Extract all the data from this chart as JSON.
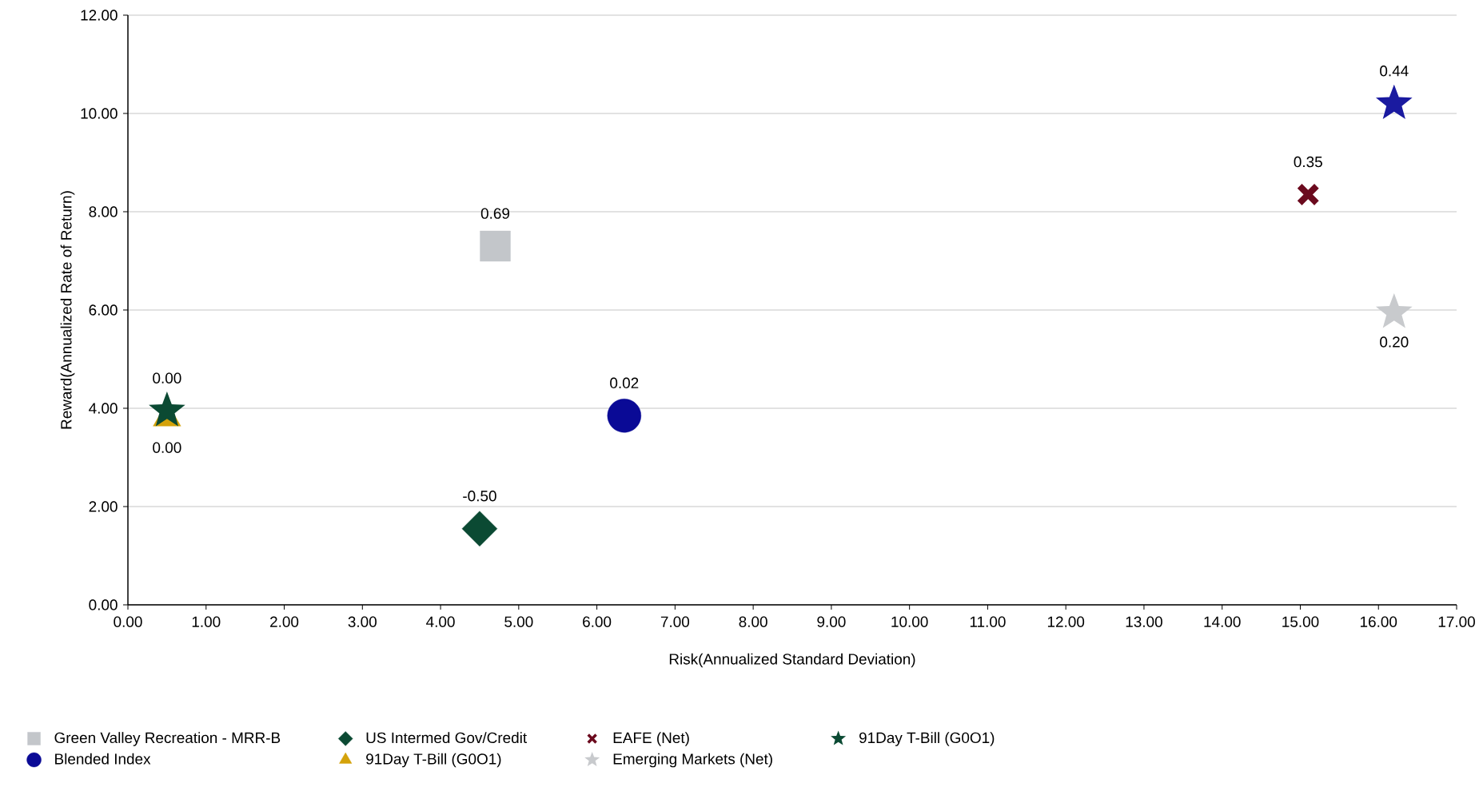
{
  "chart_data": {
    "type": "scatter",
    "xlabel": "Risk(Annualized Standard Deviation)",
    "ylabel": "Reward(Annualized Rate of Return)",
    "xlim": [
      0,
      17
    ],
    "ylim": [
      0,
      12
    ],
    "xticks": [
      {
        "value": 0,
        "label": "0.00"
      },
      {
        "value": 1,
        "label": "1.00"
      },
      {
        "value": 2,
        "label": "2.00"
      },
      {
        "value": 3,
        "label": "3.00"
      },
      {
        "value": 4,
        "label": "4.00"
      },
      {
        "value": 5,
        "label": "5.00"
      },
      {
        "value": 6,
        "label": "6.00"
      },
      {
        "value": 7,
        "label": "7.00"
      },
      {
        "value": 8,
        "label": "8.00"
      },
      {
        "value": 9,
        "label": "9.00"
      },
      {
        "value": 10,
        "label": "10.00"
      },
      {
        "value": 11,
        "label": "11.00"
      },
      {
        "value": 12,
        "label": "12.00"
      },
      {
        "value": 13,
        "label": "13.00"
      },
      {
        "value": 14,
        "label": "14.00"
      },
      {
        "value": 15,
        "label": "15.00"
      },
      {
        "value": 16,
        "label": "16.00"
      },
      {
        "value": 17,
        "label": "17.00"
      }
    ],
    "yticks": [
      {
        "value": 0,
        "label": "0.00"
      },
      {
        "value": 2,
        "label": "2.00"
      },
      {
        "value": 4,
        "label": "4.00"
      },
      {
        "value": 6,
        "label": "6.00"
      },
      {
        "value": 8,
        "label": "8.00"
      },
      {
        "value": 10,
        "label": "10.00"
      },
      {
        "value": 12,
        "label": "12.00"
      }
    ],
    "grid": "y",
    "legend": "bottom",
    "annotations": [
      {
        "text": "0.69",
        "x": 4.7,
        "y": 7.3
      },
      {
        "text": "0.02",
        "x": 6.35,
        "y": 3.85
      },
      {
        "text": "-0.50",
        "x": 4.5,
        "y": 1.55
      },
      {
        "text": "0.00",
        "x": 0.5,
        "y": 3.8
      },
      {
        "text": "0.35",
        "x": 15.1,
        "y": 8.35
      },
      {
        "text": "0.20",
        "x": 16.2,
        "y": 5.95
      },
      {
        "text": "0.44",
        "x": 16.2,
        "y": 10.2
      },
      {
        "text": "0.00",
        "x": 0.5,
        "y": 3.95
      }
    ],
    "series": [
      {
        "name": "Green Valley Recreation - MRR-B",
        "color": "#c3c6ca",
        "marker": "square",
        "x": [
          4.7
        ],
        "values": [
          7.3
        ]
      },
      {
        "name": "Blended Index",
        "color": "#0a0a96",
        "marker": "circle",
        "x": [
          6.35
        ],
        "values": [
          3.85
        ]
      },
      {
        "name": "US Intermed Gov/Credit",
        "color": "#0b4a33",
        "marker": "diamond",
        "x": [
          4.5
        ],
        "values": [
          1.55
        ]
      },
      {
        "name": "91Day T-Bill (G0O1)",
        "color": "#d4a20a",
        "marker": "triangle",
        "x": [
          0.5
        ],
        "values": [
          3.8
        ]
      },
      {
        "name": "EAFE (Net)",
        "color": "#6b0a1e",
        "marker": "cross",
        "x": [
          15.1
        ],
        "values": [
          8.35
        ]
      },
      {
        "name": "Emerging Markets (Net)",
        "color": "#c8cacd",
        "marker": "star",
        "x": [
          16.2
        ],
        "values": [
          5.95
        ]
      },
      {
        "color": "#1a1aa0",
        "marker": "star",
        "x": [
          16.2
        ],
        "values": [
          10.2
        ]
      },
      {
        "name": "91Day T-Bill (G0O1)",
        "color": "#0b4a33",
        "marker": "star",
        "x": [
          0.5
        ],
        "values": [
          3.95
        ]
      }
    ]
  }
}
